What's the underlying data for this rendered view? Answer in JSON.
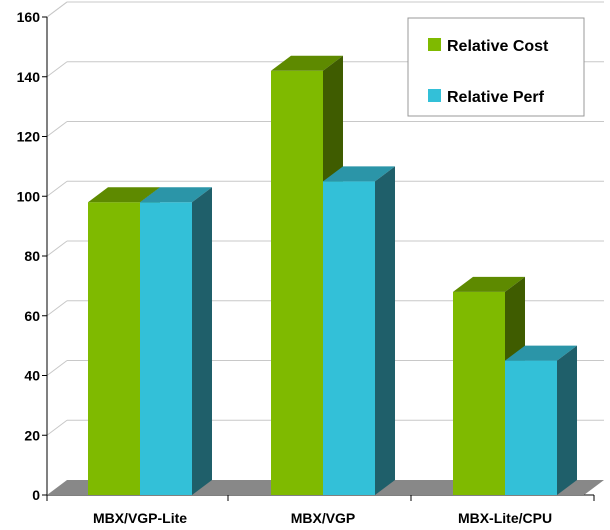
{
  "chart_data": {
    "type": "bar",
    "style": "3d-clustered-column",
    "categories": [
      "MBX/VGP-Lite",
      "MBX/VGP",
      "MBX-Lite/CPU"
    ],
    "series": [
      {
        "name": "Relative Cost",
        "values": [
          98,
          142,
          68
        ],
        "color": "#7fba00",
        "top_color": "#5e8a00",
        "side_color": "#3f5c00"
      },
      {
        "name": "Relative Perf",
        "values": [
          98,
          105,
          45
        ],
        "color": "#33c0d8",
        "top_color": "#2b95a8",
        "side_color": "#1f5f6a"
      }
    ],
    "ylim": [
      0,
      160
    ],
    "yticks": [
      "0",
      "20",
      "40",
      "60",
      "80",
      "100",
      "120",
      "140",
      "160"
    ],
    "grid": true,
    "legend_position": "top-right",
    "floor_color": "#888888"
  }
}
